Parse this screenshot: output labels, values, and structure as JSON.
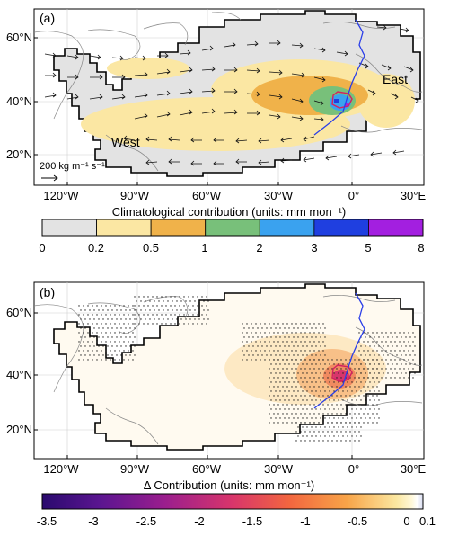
{
  "panel_a": {
    "label": "(a)",
    "region_west": "West",
    "region_east": "East",
    "vector_scale": "200 kg m⁻¹ s⁻¹",
    "lat_labels": [
      "60°N",
      "40°N",
      "20°N"
    ],
    "lon_labels": [
      "120°W",
      "90°W",
      "60°W",
      "30°W",
      "0°",
      "30°E"
    ],
    "colorbar": {
      "title": "Climatological contribution (units: mm mon⁻¹)",
      "ticks": [
        "0",
        "0.2",
        "0.5",
        "1",
        "2",
        "3",
        "5",
        "8"
      ],
      "colors": [
        "#e3e3e3",
        "#fbe7a3",
        "#f0b24a",
        "#78c07a",
        "#3aa2ef",
        "#1f3fe0",
        "#a31fe0"
      ]
    }
  },
  "panel_b": {
    "label": "(b)",
    "lat_labels": [
      "60°N",
      "40°N",
      "20°N"
    ],
    "lon_labels": [
      "120°W",
      "90°W",
      "60°W",
      "30°W",
      "0°",
      "30°E"
    ],
    "colorbar": {
      "title": "Δ Contribution (units: mm mon⁻¹)",
      "ticks": [
        "-3.5",
        "-3",
        "-2.5",
        "-2",
        "-1.5",
        "-1",
        "-0.5",
        "0",
        "0.1"
      ]
    }
  }
}
